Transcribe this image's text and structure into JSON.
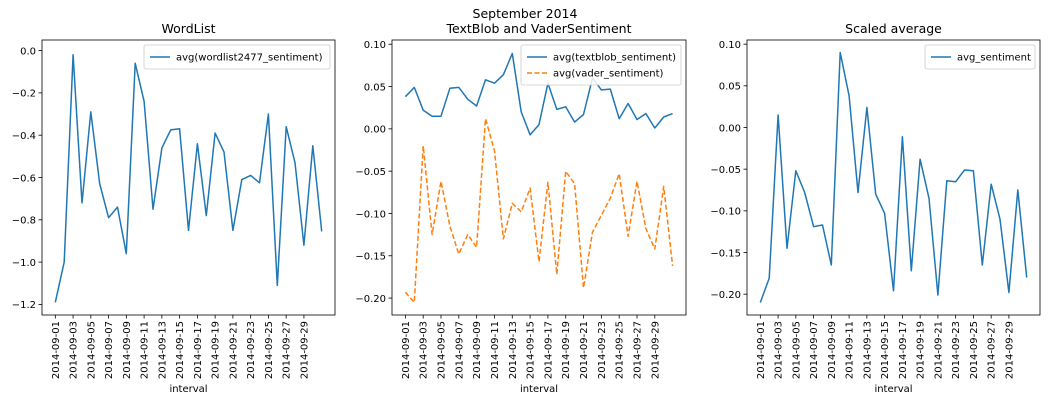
{
  "figure": {
    "suptitle": "September 2014"
  },
  "chart_data": [
    {
      "type": "line",
      "title": "WordList",
      "xlabel": "interval",
      "ylabel": "",
      "ylim": [
        -1.25,
        0.05
      ],
      "yticks": [
        0.0,
        -0.2,
        -0.4,
        -0.6,
        -0.8,
        -1.0,
        -1.2
      ],
      "ytick_labels": [
        "0.0",
        "−0.2",
        "−0.4",
        "−0.6",
        "−0.8",
        "−1.0",
        "−1.2"
      ],
      "xticks": [
        "2014-09-01",
        "2014-09-03",
        "2014-09-05",
        "2014-09-07",
        "2014-09-09",
        "2014-09-11",
        "2014-09-13",
        "2014-09-15",
        "2014-09-17",
        "2014-09-19",
        "2014-09-21",
        "2014-09-23",
        "2014-09-25",
        "2014-09-27",
        "2014-09-29"
      ],
      "grid": false,
      "legend": "top-right",
      "x": [
        "2014-09-01",
        "2014-09-02",
        "2014-09-03",
        "2014-09-04",
        "2014-09-05",
        "2014-09-06",
        "2014-09-07",
        "2014-09-08",
        "2014-09-09",
        "2014-09-10",
        "2014-09-11",
        "2014-09-12",
        "2014-09-13",
        "2014-09-14",
        "2014-09-15",
        "2014-09-16",
        "2014-09-17",
        "2014-09-18",
        "2014-09-19",
        "2014-09-20",
        "2014-09-21",
        "2014-09-22",
        "2014-09-23",
        "2014-09-24",
        "2014-09-25",
        "2014-09-26",
        "2014-09-27",
        "2014-09-28",
        "2014-09-29",
        "2014-09-30",
        "2014-10-01"
      ],
      "series": [
        {
          "name": "avg(wordlist2477_sentiment)",
          "color": "#1f77b4",
          "dash": false,
          "values": [
            -1.19,
            -1.0,
            -0.02,
            -0.72,
            -0.29,
            -0.63,
            -0.79,
            -0.74,
            -0.96,
            -0.06,
            -0.24,
            -0.75,
            -0.46,
            -0.375,
            -0.37,
            -0.85,
            -0.44,
            -0.78,
            -0.39,
            -0.48,
            -0.85,
            -0.61,
            -0.59,
            -0.625,
            -0.3,
            -1.11,
            -0.36,
            -0.53,
            -0.92,
            -0.45,
            -0.855
          ]
        }
      ]
    },
    {
      "type": "line",
      "title": "TextBlob and VaderSentiment",
      "xlabel": "interval",
      "ylabel": "",
      "ylim": [
        -0.22,
        0.105
      ],
      "yticks": [
        0.1,
        0.05,
        0.0,
        -0.05,
        -0.1,
        -0.15,
        -0.2
      ],
      "ytick_labels": [
        "0.10",
        "0.05",
        "0.00",
        "−0.05",
        "−0.10",
        "−0.15",
        "−0.20"
      ],
      "xticks": [
        "2014-09-01",
        "2014-09-03",
        "2014-09-05",
        "2014-09-07",
        "2014-09-09",
        "2014-09-11",
        "2014-09-13",
        "2014-09-15",
        "2014-09-17",
        "2014-09-19",
        "2014-09-21",
        "2014-09-23",
        "2014-09-25",
        "2014-09-27",
        "2014-09-29"
      ],
      "grid": false,
      "legend": "top-right",
      "x": [
        "2014-09-01",
        "2014-09-02",
        "2014-09-03",
        "2014-09-04",
        "2014-09-05",
        "2014-09-06",
        "2014-09-07",
        "2014-09-08",
        "2014-09-09",
        "2014-09-10",
        "2014-09-11",
        "2014-09-12",
        "2014-09-13",
        "2014-09-14",
        "2014-09-15",
        "2014-09-16",
        "2014-09-17",
        "2014-09-18",
        "2014-09-19",
        "2014-09-20",
        "2014-09-21",
        "2014-09-22",
        "2014-09-23",
        "2014-09-24",
        "2014-09-25",
        "2014-09-26",
        "2014-09-27",
        "2014-09-28",
        "2014-09-29",
        "2014-09-30",
        "2014-10-01"
      ],
      "series": [
        {
          "name": "avg(textblob_sentiment)",
          "color": "#1f77b4",
          "dash": false,
          "values": [
            0.038,
            0.049,
            0.022,
            0.015,
            0.015,
            0.048,
            0.049,
            0.035,
            0.027,
            0.058,
            0.054,
            0.064,
            0.089,
            0.02,
            -0.007,
            0.005,
            0.054,
            0.023,
            0.026,
            0.008,
            0.017,
            0.06,
            0.046,
            0.047,
            0.012,
            0.03,
            0.011,
            0.018,
            0.001,
            0.014,
            0.018
          ]
        },
        {
          "name": "avg(vader_sentiment)",
          "color": "#ff7f0e",
          "dash": true,
          "values": [
            -0.193,
            -0.205,
            -0.02,
            -0.125,
            -0.062,
            -0.115,
            -0.148,
            -0.125,
            -0.14,
            0.012,
            -0.026,
            -0.13,
            -0.088,
            -0.098,
            -0.07,
            -0.157,
            -0.063,
            -0.172,
            -0.05,
            -0.065,
            -0.188,
            -0.122,
            -0.102,
            -0.082,
            -0.053,
            -0.127,
            -0.062,
            -0.118,
            -0.142,
            -0.068,
            -0.162
          ]
        }
      ]
    },
    {
      "type": "line",
      "title": "Scaled average",
      "xlabel": "interval",
      "ylabel": "",
      "ylim": [
        -0.225,
        0.105
      ],
      "yticks": [
        0.1,
        0.05,
        0.0,
        -0.05,
        -0.1,
        -0.15,
        -0.2
      ],
      "ytick_labels": [
        "0.10",
        "0.05",
        "0.00",
        "−0.05",
        "−0.10",
        "−0.15",
        "−0.20"
      ],
      "xticks": [
        "2014-09-01",
        "2014-09-03",
        "2014-09-05",
        "2014-09-07",
        "2014-09-09",
        "2014-09-11",
        "2014-09-13",
        "2014-09-15",
        "2014-09-17",
        "2014-09-19",
        "2014-09-21",
        "2014-09-23",
        "2014-09-25",
        "2014-09-27",
        "2014-09-29"
      ],
      "grid": false,
      "legend": "top-right",
      "x": [
        "2014-09-01",
        "2014-09-02",
        "2014-09-03",
        "2014-09-04",
        "2014-09-05",
        "2014-09-06",
        "2014-09-07",
        "2014-09-08",
        "2014-09-09",
        "2014-09-10",
        "2014-09-11",
        "2014-09-12",
        "2014-09-13",
        "2014-09-14",
        "2014-09-15",
        "2014-09-16",
        "2014-09-17",
        "2014-09-18",
        "2014-09-19",
        "2014-09-20",
        "2014-09-21",
        "2014-09-22",
        "2014-09-23",
        "2014-09-24",
        "2014-09-25",
        "2014-09-26",
        "2014-09-27",
        "2014-09-28",
        "2014-09-29",
        "2014-09-30",
        "2014-10-01"
      ],
      "series": [
        {
          "name": "avg_sentiment",
          "color": "#1f77b4",
          "dash": false,
          "values": [
            -0.21,
            -0.181,
            0.015,
            -0.145,
            -0.052,
            -0.078,
            -0.119,
            -0.117,
            -0.165,
            0.09,
            0.038,
            -0.078,
            0.024,
            -0.08,
            -0.103,
            -0.196,
            -0.011,
            -0.172,
            -0.038,
            -0.085,
            -0.201,
            -0.064,
            -0.065,
            -0.051,
            -0.052,
            -0.165,
            -0.068,
            -0.11,
            -0.198,
            -0.075,
            -0.18
          ]
        }
      ]
    }
  ]
}
